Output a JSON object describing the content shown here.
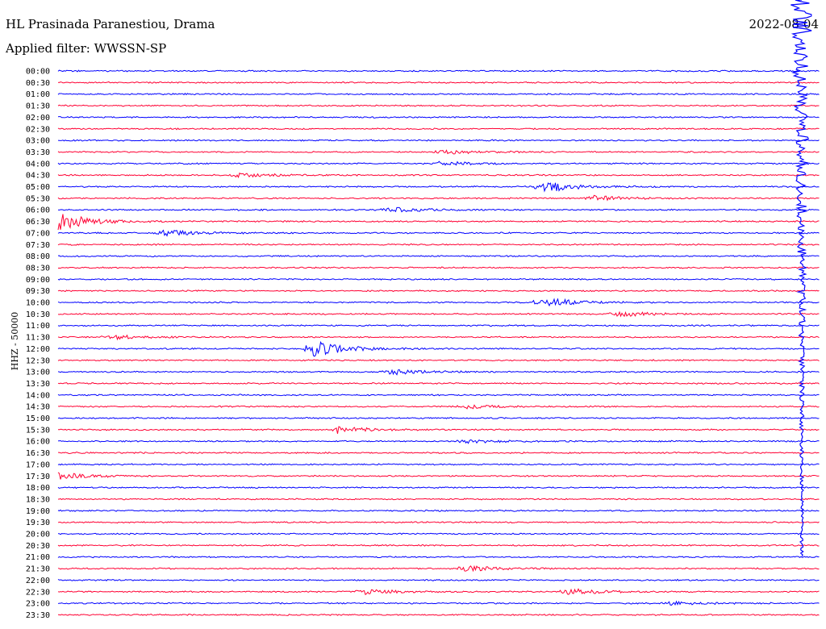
{
  "header": {
    "station": "HL Prasinada Paranestiou, Drama",
    "filter": "Applied filter: WWSSN-SP",
    "date": "2022-08-04",
    "channel": "HHZ - 50000"
  },
  "colors": {
    "trace_a": "#0000ff",
    "trace_b": "#ff0033",
    "background": "#ffffff",
    "text": "#000000"
  },
  "chart_data": {
    "type": "line",
    "title": "HL Prasinada Paranestiou, Drama",
    "ylabel": "HHZ - 50000",
    "row_labels": [
      "00:00",
      "00:30",
      "01:00",
      "01:30",
      "02:00",
      "02:30",
      "03:00",
      "03:30",
      "04:00",
      "04:30",
      "05:00",
      "05:30",
      "06:00",
      "06:30",
      "07:00",
      "07:30",
      "08:00",
      "08:30",
      "09:00",
      "09:30",
      "10:00",
      "10:30",
      "11:00",
      "11:30",
      "12:00",
      "12:30",
      "13:00",
      "13:30",
      "14:00",
      "14:30",
      "15:00",
      "15:30",
      "16:00",
      "16:30",
      "17:00",
      "17:30",
      "18:00",
      "18:30",
      "19:00",
      "19:30",
      "20:00",
      "20:30",
      "21:00",
      "21:30",
      "22:00",
      "22:30",
      "23:00",
      "23:30"
    ],
    "color_cycle": [
      "blue",
      "red"
    ],
    "minutes_per_row": 30,
    "events": [
      {
        "row": "03:30",
        "at_min": 15,
        "amp": 0.5
      },
      {
        "row": "04:00",
        "at_min": 15,
        "amp": 0.4
      },
      {
        "row": "04:30",
        "at_min": 7,
        "amp": 0.4
      },
      {
        "row": "05:00",
        "at_min": 19,
        "amp": 1.2
      },
      {
        "row": "05:30",
        "at_min": 21,
        "amp": 0.5
      },
      {
        "row": "06:00",
        "at_min": 13,
        "amp": 0.5
      },
      {
        "row": "06:30",
        "at_min": 0,
        "amp": 1.6
      },
      {
        "row": "07:00",
        "at_min": 4,
        "amp": 0.7
      },
      {
        "row": "10:00",
        "at_min": 19,
        "amp": 0.9
      },
      {
        "row": "10:30",
        "at_min": 22,
        "amp": 0.5
      },
      {
        "row": "11:30",
        "at_min": 2,
        "amp": 0.4
      },
      {
        "row": "12:00",
        "at_min": 10,
        "amp": 1.6
      },
      {
        "row": "13:00",
        "at_min": 13,
        "amp": 0.5
      },
      {
        "row": "14:30",
        "at_min": 16,
        "amp": 0.4
      },
      {
        "row": "15:30",
        "at_min": 11,
        "amp": 0.6
      },
      {
        "row": "16:00",
        "at_min": 16,
        "amp": 0.35
      },
      {
        "row": "17:30",
        "at_min": 0,
        "amp": 0.6
      },
      {
        "row": "21:30",
        "at_min": 16,
        "amp": 0.6
      },
      {
        "row": "22:30",
        "at_min": 12,
        "amp": 0.5
      },
      {
        "row": "22:30",
        "at_min": 20,
        "amp": 0.6
      },
      {
        "row": "23:00",
        "at_min": 24,
        "amp": 0.3
      }
    ],
    "large_event": {
      "row": "00:00",
      "at_min": 29.3,
      "to_row": "20:30"
    }
  }
}
